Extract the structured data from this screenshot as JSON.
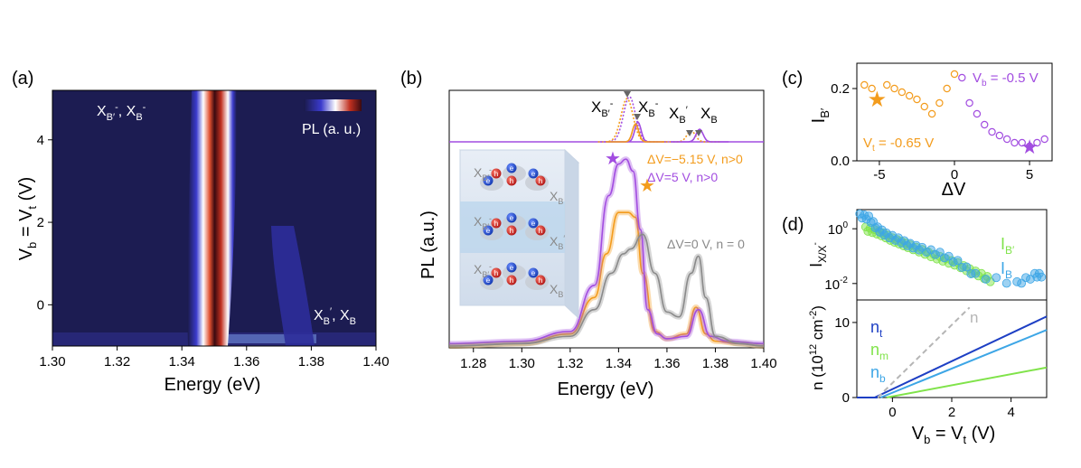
{
  "colors": {
    "orange": "#f39c1d",
    "purple": "#a24de0",
    "gray": "#8a8a8a",
    "green": "#80e34a",
    "lightblue": "#3da6e6",
    "navy": "#1d3fc4"
  },
  "chart_data": [
    {
      "panel": "(a)",
      "type": "heatmap",
      "xlabel": "Energy (eV)",
      "ylabel_parts": [
        "V",
        "b",
        " = V",
        "t",
        " (V)"
      ],
      "xticks": [
        "1.30",
        "1.32",
        "1.34",
        "1.36",
        "1.38",
        "1.40"
      ],
      "yticks": [
        "0",
        "2",
        "4"
      ],
      "xlim": [
        1.3,
        1.4
      ],
      "ylim": [
        -1.0,
        5.2
      ],
      "colorbar_label": "PL (a. u.)",
      "colormap": [
        "#1a1a4a",
        "#3a3acc",
        "#ffffff",
        "#c03020",
        "#3a0a10"
      ],
      "ridges": [
        {
          "energy_at_top": 1.347,
          "energy_at_bottom": 1.343,
          "width_eV": 0.006
        },
        {
          "energy_at_top": 1.372,
          "energy_at_bottom": 1.373,
          "width_eV": 0.004
        }
      ],
      "annotations": [
        "X_B'^-, X_B^-",
        "X_B', X_B"
      ]
    },
    {
      "panel": "(b)",
      "type": "line",
      "xlabel": "Energy (eV)",
      "ylabel": "PL (a.u.)",
      "xticks": [
        "1.28",
        "1.30",
        "1.32",
        "1.34",
        "1.36",
        "1.38",
        "1.40"
      ],
      "xlim": [
        1.27,
        1.4
      ],
      "series": [
        {
          "name": "ΔV=-5.15 V, n>0",
          "x": [
            1.27,
            1.3,
            1.32,
            1.33,
            1.335,
            1.34,
            1.344,
            1.347,
            1.35,
            1.355,
            1.36,
            1.368,
            1.372,
            1.376,
            1.38,
            1.39,
            1.4
          ],
          "values": [
            0.0,
            0.01,
            0.05,
            0.2,
            0.38,
            0.55,
            0.55,
            0.53,
            0.3,
            0.06,
            0.03,
            0.05,
            0.16,
            0.05,
            0.02,
            0.01,
            0.0
          ]
        },
        {
          "name": "ΔV=5 V, n>0",
          "x": [
            1.27,
            1.3,
            1.32,
            1.33,
            1.336,
            1.34,
            1.343,
            1.346,
            1.349,
            1.352,
            1.356,
            1.36,
            1.368,
            1.373,
            1.378,
            1.385,
            1.4
          ],
          "values": [
            0.01,
            0.02,
            0.06,
            0.25,
            0.62,
            0.75,
            0.77,
            0.72,
            0.48,
            0.15,
            0.05,
            0.03,
            0.04,
            0.15,
            0.04,
            0.02,
            0.01
          ]
        },
        {
          "name": "ΔV=0 V, n = 0",
          "x": [
            1.27,
            1.3,
            1.32,
            1.33,
            1.337,
            1.342,
            1.345,
            1.35,
            1.355,
            1.36,
            1.365,
            1.37,
            1.373,
            1.376,
            1.38,
            1.39,
            1.4
          ],
          "values": [
            0.0,
            0.01,
            0.04,
            0.15,
            0.3,
            0.38,
            0.4,
            0.46,
            0.3,
            0.14,
            0.12,
            0.3,
            0.37,
            0.2,
            0.04,
            0.01,
            0.0
          ]
        }
      ],
      "inset_labels": [
        "X_B'^-",
        "X_B^-",
        "X_B'",
        "X_B"
      ],
      "legend": [
        "ΔV=-5.15 V, n>0",
        "ΔV=5 V, n>0",
        "ΔV=0 V, n = 0"
      ]
    },
    {
      "panel": "(c)",
      "type": "scatter",
      "xlabel": "ΔV",
      "ylabel": "I_B'",
      "xticks": [
        "-5",
        "0",
        "5"
      ],
      "yticks": [
        "0.0",
        "0.2"
      ],
      "xlim": [
        -6.5,
        6.5
      ],
      "ylim": [
        0.0,
        0.27
      ],
      "series": [
        {
          "name": "V_t = -0.65 V",
          "x": [
            -6.0,
            -5.5,
            -4.5,
            -4.0,
            -3.5,
            -3.0,
            -2.5,
            -2.0,
            -1.5,
            -1.0,
            -0.5,
            0.0
          ],
          "values": [
            0.21,
            0.2,
            0.21,
            0.2,
            0.19,
            0.18,
            0.17,
            0.15,
            0.13,
            0.16,
            0.2,
            0.24
          ]
        },
        {
          "name": "V_b = -0.5 V",
          "x": [
            0.5,
            1.0,
            1.5,
            2.0,
            2.5,
            3.0,
            3.5,
            4.0,
            4.5,
            5.0,
            5.5,
            6.0
          ],
          "values": [
            0.23,
            0.16,
            0.13,
            0.1,
            0.08,
            0.07,
            0.06,
            0.05,
            0.05,
            0.04,
            0.05,
            0.06
          ]
        }
      ],
      "stars": [
        {
          "x": -5.15,
          "y": 0.17
        },
        {
          "x": 5.0,
          "y": 0.04
        }
      ]
    },
    {
      "panel": "(d)",
      "type": "scatter",
      "ylabel": "I_X/X^-",
      "yticks": [
        "10^0",
        "10^-2"
      ],
      "xlim": [
        -1.2,
        5.2
      ],
      "series": [
        {
          "name": "I_B'",
          "x": [
            -0.9,
            -0.6,
            -0.3,
            0.0,
            0.3,
            0.6,
            1.0,
            1.4,
            1.8,
            2.2,
            2.6,
            3.0,
            3.4
          ],
          "values": [
            1.0,
            0.8,
            0.6,
            0.4,
            0.3,
            0.22,
            0.15,
            0.1,
            0.07,
            0.05,
            0.03,
            0.02,
            0.012
          ]
        },
        {
          "name": "I_B",
          "x": [
            -1.1,
            -0.8,
            -0.5,
            -0.2,
            0.2,
            0.6,
            1.0,
            1.6,
            2.2,
            2.8,
            4.2,
            4.8,
            5.1
          ],
          "values": [
            3.0,
            2.5,
            1.0,
            0.6,
            0.4,
            0.25,
            0.18,
            0.12,
            0.06,
            0.02,
            0.01,
            0.02,
            0.02
          ]
        }
      ]
    },
    {
      "panel": "(d) lower",
      "type": "line",
      "xlabel_parts": [
        "V",
        "b",
        " = V",
        "t",
        " (V)"
      ],
      "ylabel": "n (10^12 cm^-2)",
      "xticks": [
        "0",
        "2",
        "4"
      ],
      "yticks": [
        "0",
        "10"
      ],
      "xlim": [
        -1.2,
        5.2
      ],
      "ylim": [
        0,
        13
      ],
      "series": [
        {
          "name": "n_t",
          "x": [
            -0.6,
            5.2
          ],
          "values": [
            0.0,
            10.8
          ]
        },
        {
          "name": "n_m",
          "x": [
            -0.2,
            5.2
          ],
          "values": [
            0.0,
            4.0
          ]
        },
        {
          "name": "n_b",
          "x": [
            -0.4,
            5.2
          ],
          "values": [
            0.0,
            9.0
          ]
        },
        {
          "name": "n",
          "x": [
            -0.5,
            2.6
          ],
          "values": [
            0.0,
            12.0
          ]
        }
      ]
    }
  ],
  "labels": {
    "a": "(a)",
    "b": "(b)",
    "c": "(c)",
    "d": "(d)",
    "a_xlabel": "Energy (eV)",
    "a_cbar": "PL (a. u.)",
    "b_xlabel": "Energy (eV)",
    "b_ylabel": "PL (a.u.)",
    "b_leg1": "ΔV=−5.15 V, n>0",
    "b_leg2": "ΔV=5 V, n>0",
    "b_leg3": "ΔV=0 V, n = 0",
    "c_xlabel": "ΔV",
    "c_vt": "V",
    "c_vt_sub": "t",
    "c_vt_val": " = -0.65 V",
    "c_vb": "V",
    "c_vb_sub": "b",
    "c_vb_val": " = -0.5 V",
    "d_n": "n",
    "d_nt": "n",
    "d_nt_sub": "t",
    "d_nm": "n",
    "d_nm_sub": "m",
    "d_nb": "n",
    "d_nb_sub": "b",
    "d_ylabel_bot": "n (10",
    "d_ylabel_bot_sup": "12",
    "d_ylabel_bot_end": " cm",
    "d_ylabel_bot_sup2": "-2",
    "d_ylabel_bot_close": ")",
    "xb": "X",
    "sub_b": "B",
    "sub_bp": "B′",
    "minus": "-",
    "e": "e",
    "h": "h"
  }
}
